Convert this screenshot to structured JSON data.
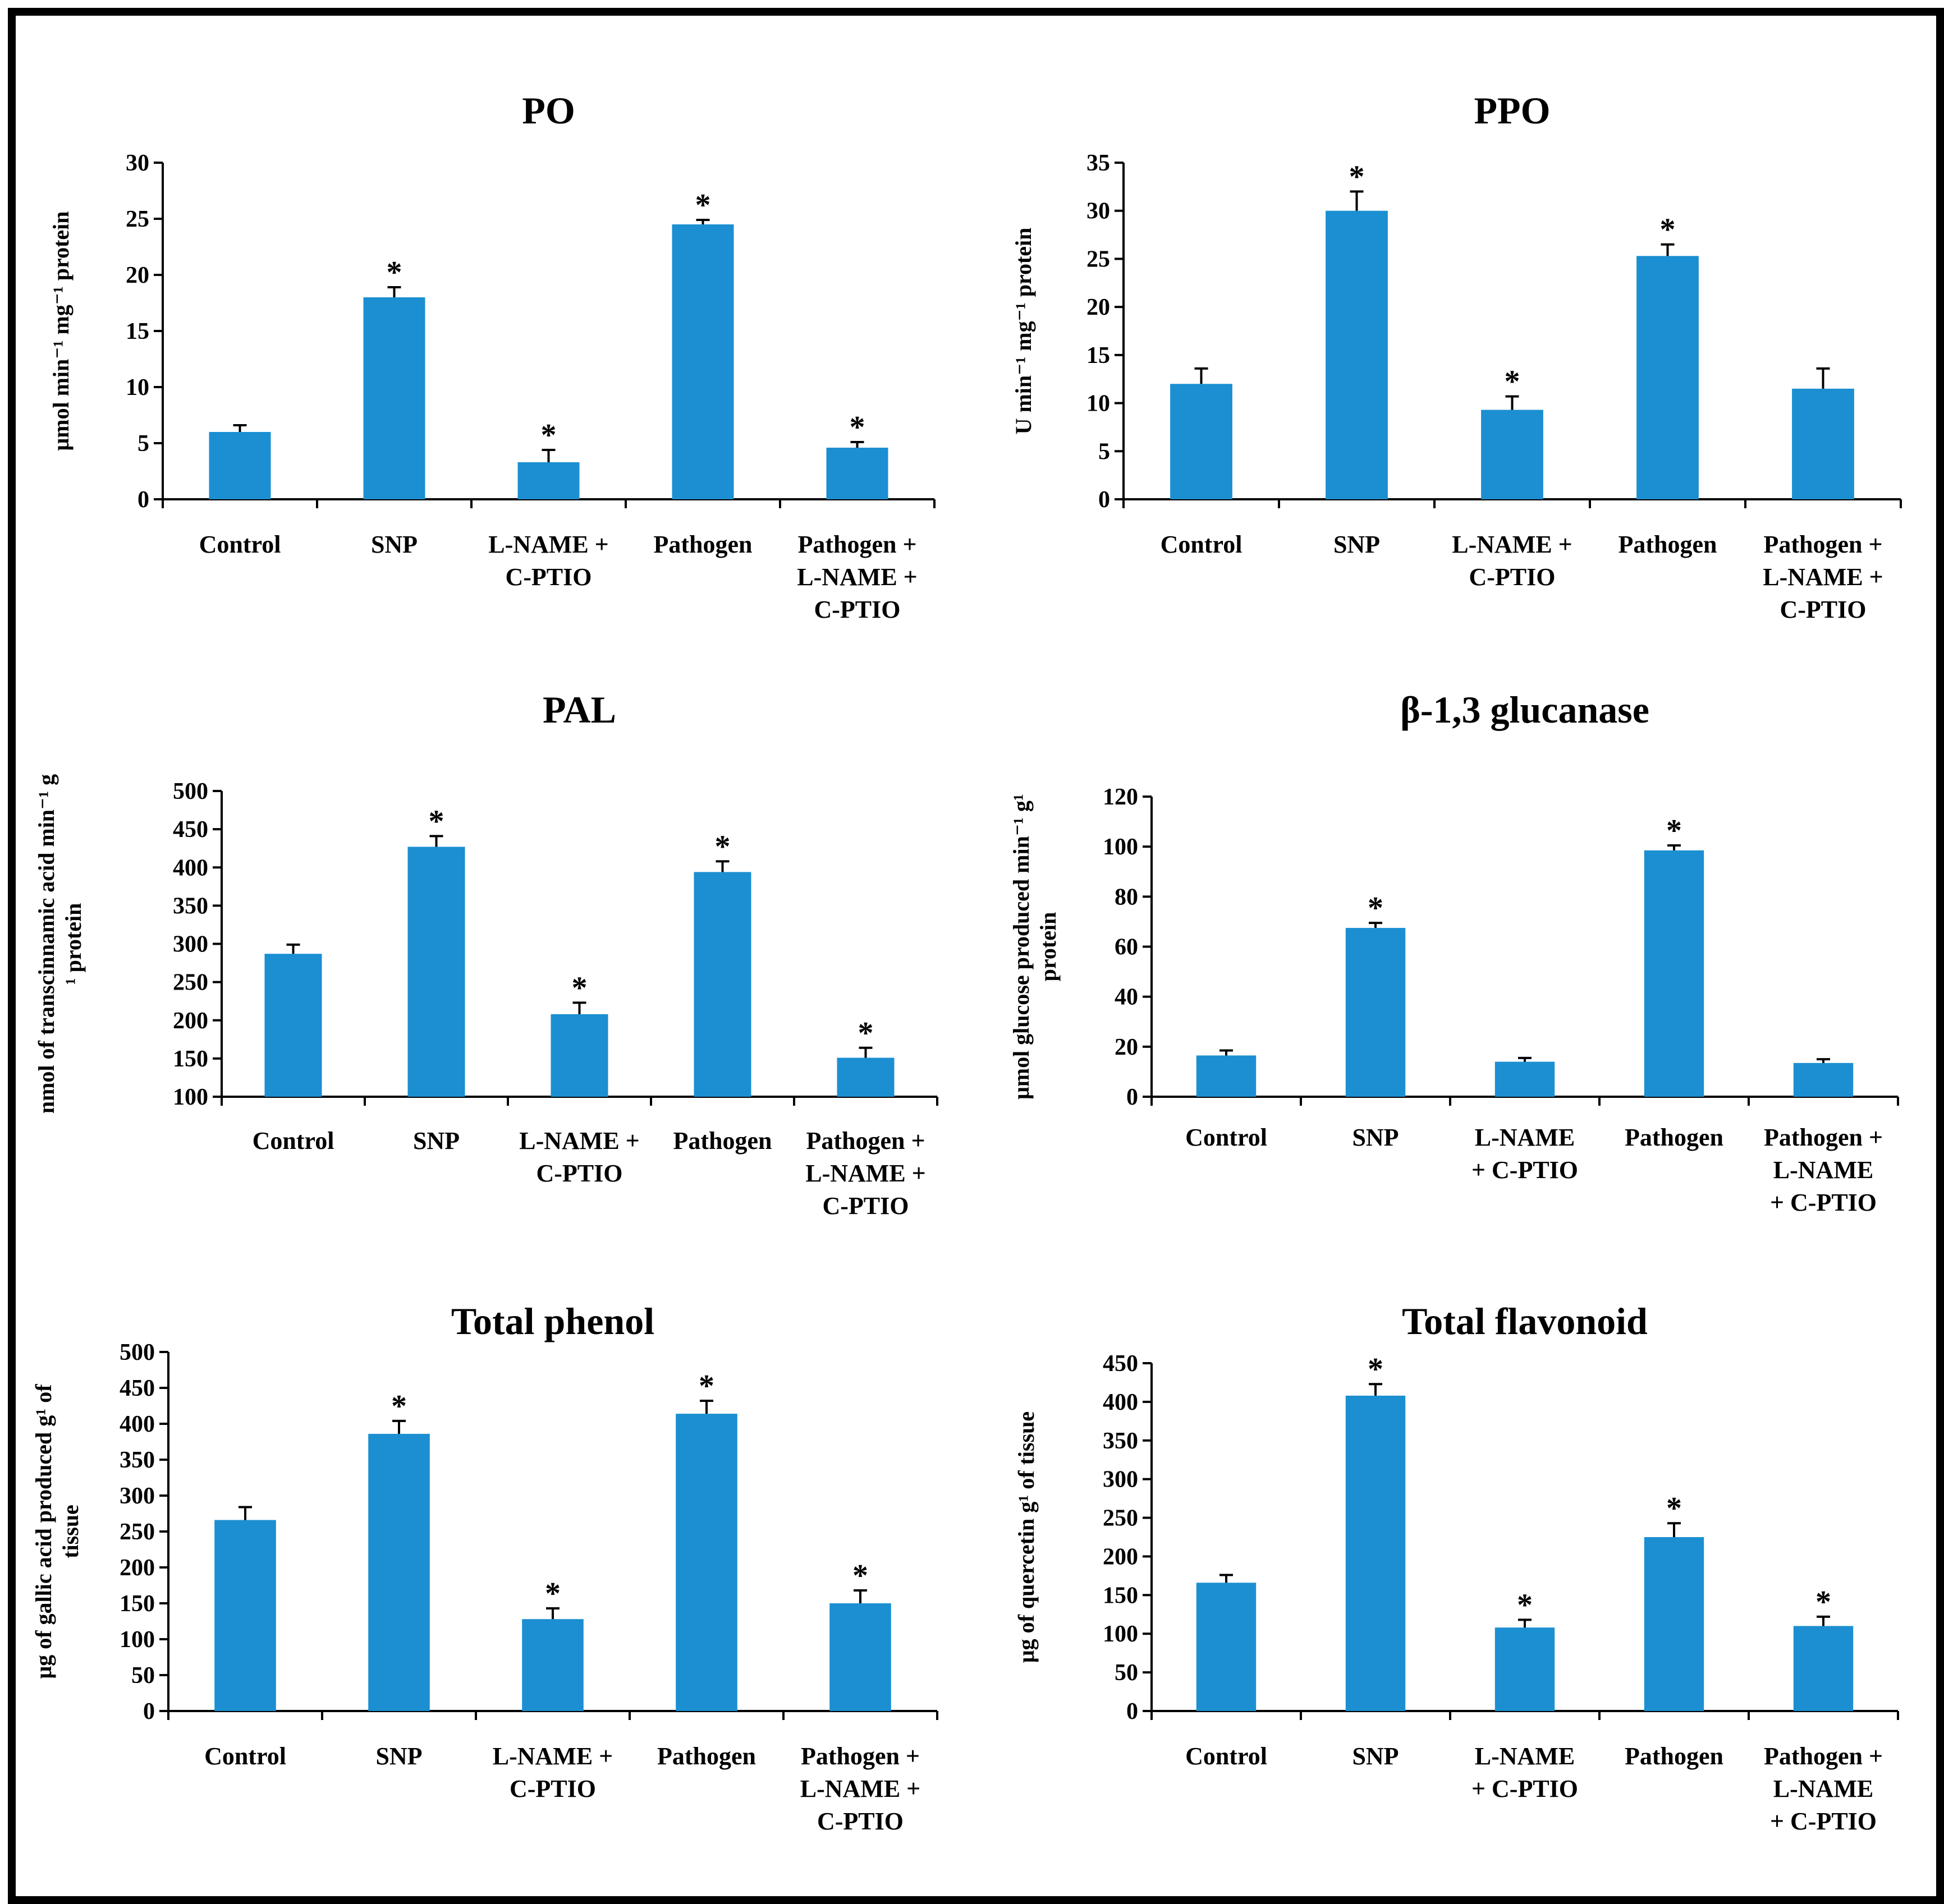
{
  "colors": {
    "bar": "#1b8fd1",
    "axis": "#000000",
    "frame": "#000000"
  },
  "chart_data": [
    {
      "type": "bar",
      "title": "PO",
      "ylabel_lines": [
        "μmol min⁻¹ mg⁻¹ protein"
      ],
      "categories": [
        [
          "Control"
        ],
        [
          "SNP"
        ],
        [
          "L-NAME +",
          "C-PTIO"
        ],
        [
          "Pathogen"
        ],
        [
          "Pathogen +",
          "L-NAME +",
          "C-PTIO"
        ]
      ],
      "values": [
        6,
        18,
        3.3,
        24.5,
        4.6
      ],
      "errors": [
        0.6,
        0.9,
        1.1,
        0.4,
        0.5
      ],
      "significant": [
        false,
        true,
        true,
        true,
        true
      ],
      "ylim": [
        0,
        30
      ],
      "yticks": [
        0,
        5,
        10,
        15,
        20,
        25,
        30
      ],
      "grid": false,
      "legend": "none"
    },
    {
      "type": "bar",
      "title": "PPO",
      "ylabel_lines": [
        "U min⁻¹ mg⁻¹ protein"
      ],
      "categories": [
        [
          "Control"
        ],
        [
          "SNP"
        ],
        [
          "L-NAME +",
          "C-PTIO"
        ],
        [
          "Pathogen"
        ],
        [
          "Pathogen +",
          "L-NAME +",
          "C-PTIO"
        ]
      ],
      "values": [
        12,
        30,
        9.3,
        25.3,
        11.5
      ],
      "errors": [
        1.6,
        2.0,
        1.4,
        1.2,
        2.1
      ],
      "significant": [
        false,
        true,
        true,
        true,
        false
      ],
      "ylim": [
        0,
        35
      ],
      "yticks": [
        0,
        5,
        10,
        15,
        20,
        25,
        30,
        35
      ],
      "grid": false,
      "legend": "none"
    },
    {
      "type": "bar",
      "title": "PAL",
      "ylabel_lines": [
        "nmol of transcinnamic acid min⁻¹ g",
        "¹ protein"
      ],
      "categories": [
        [
          "Control"
        ],
        [
          "SNP"
        ],
        [
          "L-NAME +",
          "C-PTIO"
        ],
        [
          "Pathogen"
        ],
        [
          "Pathogen +",
          "L-NAME +",
          "C-PTIO"
        ]
      ],
      "values": [
        287,
        427,
        208,
        394,
        151
      ],
      "errors": [
        12,
        14,
        15,
        14,
        13
      ],
      "significant": [
        false,
        true,
        true,
        true,
        true
      ],
      "ylim": [
        100,
        500
      ],
      "yticks": [
        100,
        150,
        200,
        250,
        300,
        350,
        400,
        450,
        500
      ],
      "grid": false,
      "legend": "none"
    },
    {
      "type": "bar",
      "title": "β-1,3 glucanase",
      "ylabel_lines": [
        "μmol glucose produced min⁻¹ g¹",
        "protein"
      ],
      "categories": [
        [
          "Control"
        ],
        [
          "SNP"
        ],
        [
          "L-NAME",
          "+ C-PTIO"
        ],
        [
          "Pathogen"
        ],
        [
          "Pathogen +",
          "L-NAME",
          "+ C-PTIO"
        ]
      ],
      "values": [
        16.5,
        67.5,
        14,
        98.5,
        13.5
      ],
      "errors": [
        2,
        2,
        1.5,
        2,
        1.5
      ],
      "significant": [
        false,
        true,
        false,
        true,
        false
      ],
      "ylim": [
        0,
        120
      ],
      "yticks": [
        0,
        20,
        40,
        60,
        80,
        100,
        120
      ],
      "grid": false,
      "legend": "none"
    },
    {
      "type": "bar",
      "title": "Total phenol",
      "ylabel_lines": [
        "μg of gallic acid produced g¹ of",
        "tissue"
      ],
      "categories": [
        [
          "Control"
        ],
        [
          "SNP"
        ],
        [
          "L-NAME +",
          "C-PTIO"
        ],
        [
          "Pathogen"
        ],
        [
          "Pathogen +",
          "L-NAME +",
          "C-PTIO"
        ]
      ],
      "values": [
        266,
        386,
        128,
        414,
        150
      ],
      "errors": [
        18,
        18,
        15,
        18,
        18
      ],
      "significant": [
        false,
        true,
        true,
        true,
        true
      ],
      "ylim": [
        0,
        500
      ],
      "yticks": [
        0,
        50,
        100,
        150,
        200,
        250,
        300,
        350,
        400,
        450,
        500
      ],
      "grid": false,
      "legend": "none"
    },
    {
      "type": "bar",
      "title": "Total flavonoid",
      "ylabel_lines": [
        "μg of quercetin g¹ of tissue"
      ],
      "categories": [
        [
          "Control"
        ],
        [
          "SNP"
        ],
        [
          "L-NAME",
          "+ C-PTIO"
        ],
        [
          "Pathogen"
        ],
        [
          "Pathogen +",
          "L-NAME",
          "+ C-PTIO"
        ]
      ],
      "values": [
        166,
        408,
        108,
        225,
        110
      ],
      "errors": [
        10,
        15,
        10,
        18,
        12
      ],
      "significant": [
        false,
        true,
        true,
        true,
        true
      ],
      "ylim": [
        0,
        450
      ],
      "yticks": [
        0,
        50,
        100,
        150,
        200,
        250,
        300,
        350,
        400,
        450
      ],
      "grid": false,
      "legend": "none"
    }
  ]
}
